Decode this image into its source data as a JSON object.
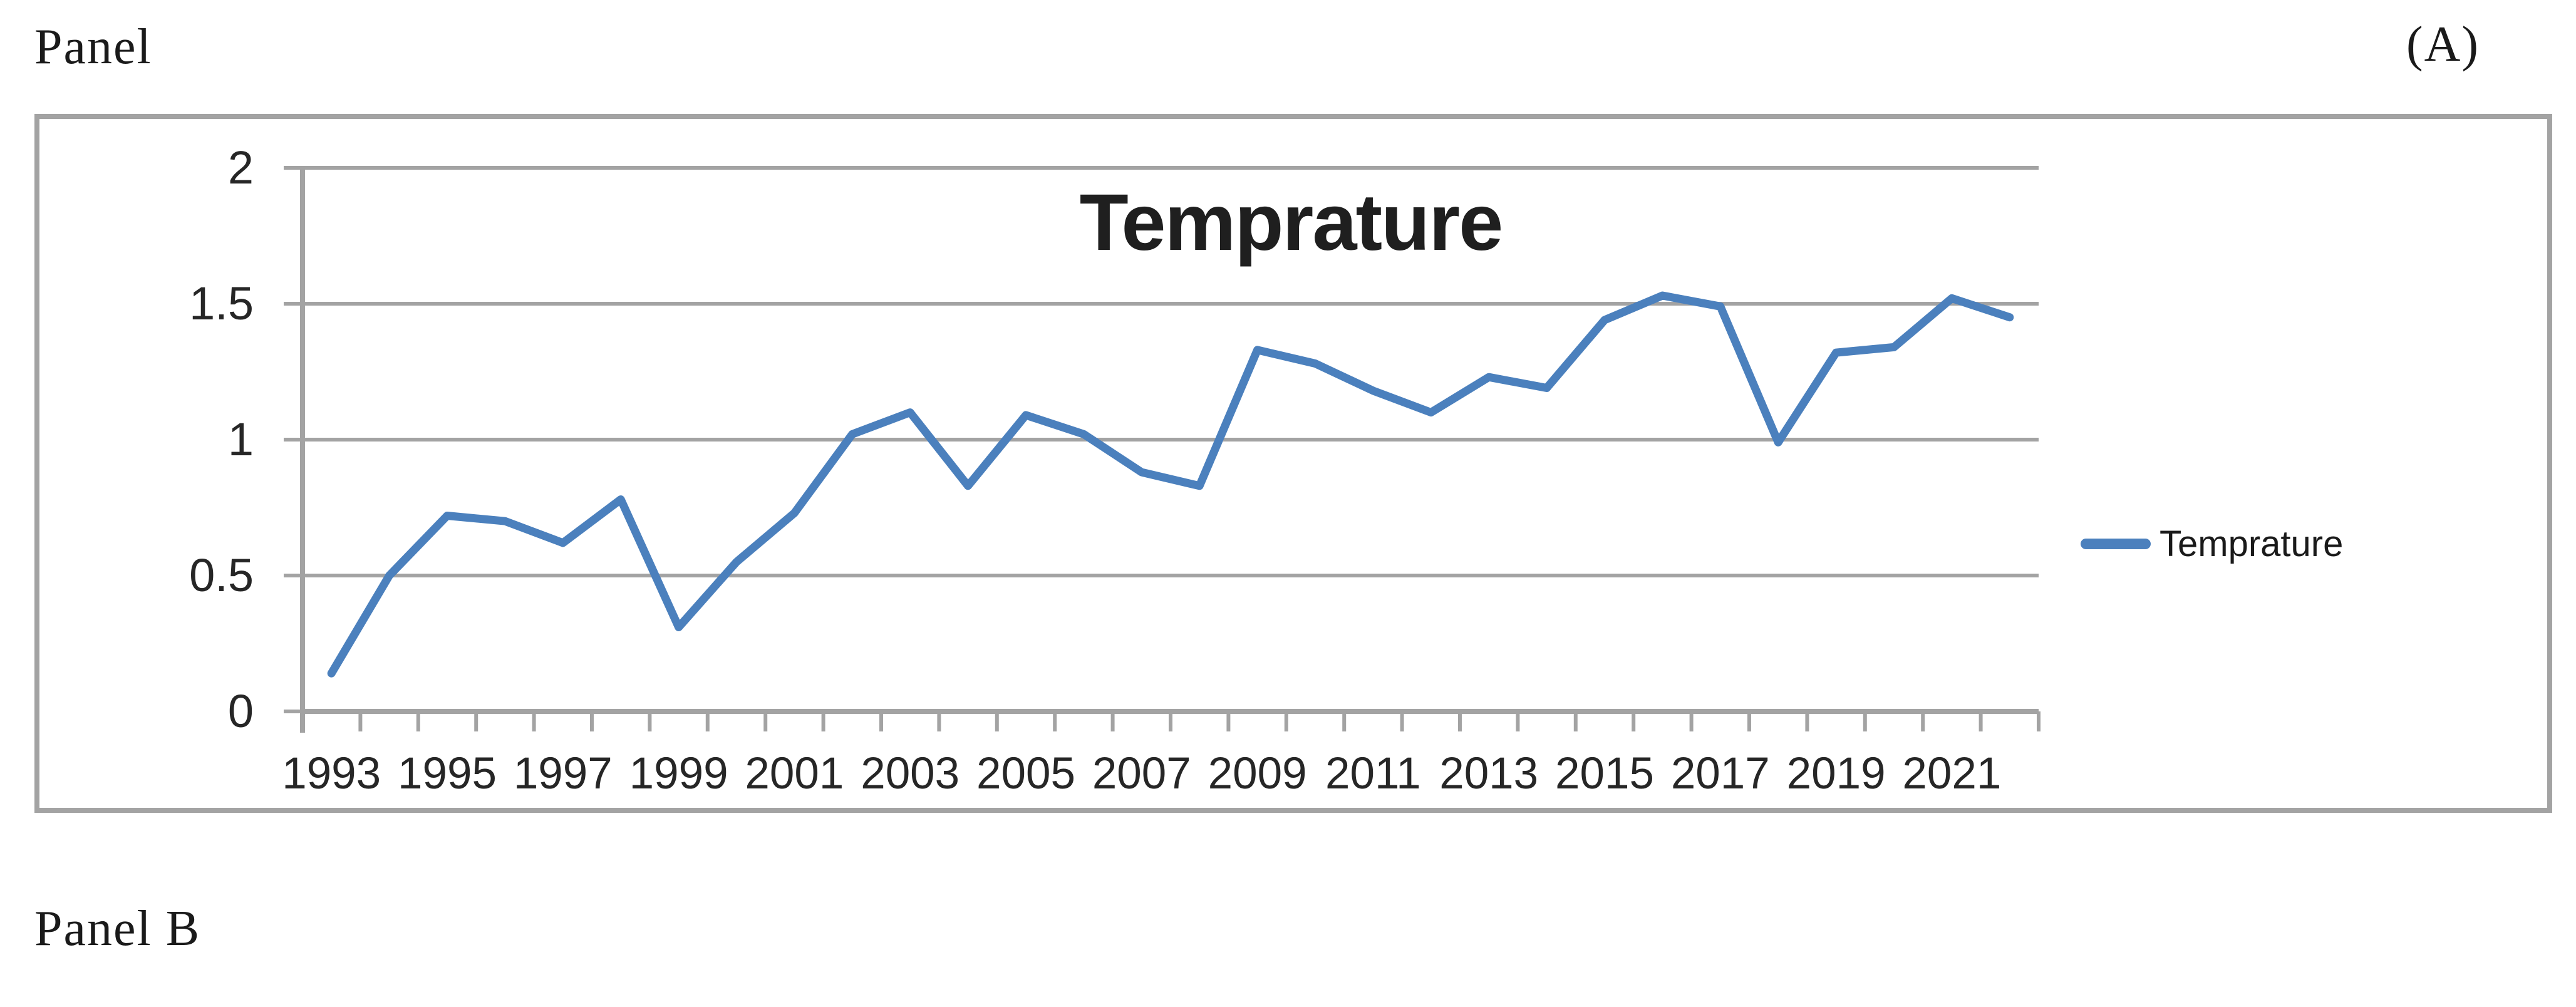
{
  "page": {
    "panel_label": "Panel",
    "corner_label": "(A)",
    "panel_b_label": "Panel B"
  },
  "chart": {
    "title": "Temprature",
    "legend_label": "Temprature",
    "colors": {
      "line": "#4b80bd",
      "grid": "#a3a3a3",
      "axis": "#a3a3a3",
      "border": "#a3a3a3",
      "title_text": "#1f1f1f",
      "axis_text": "#262626"
    }
  },
  "chart_data": {
    "type": "line",
    "title": "Temprature",
    "xlabel": "",
    "ylabel": "",
    "x": [
      1993,
      1994,
      1995,
      1996,
      1997,
      1998,
      1999,
      2000,
      2001,
      2002,
      2003,
      2004,
      2005,
      2006,
      2007,
      2008,
      2009,
      2010,
      2011,
      2012,
      2013,
      2014,
      2015,
      2016,
      2017,
      2018,
      2019,
      2020,
      2021,
      2022
    ],
    "series": [
      {
        "name": "Temprature",
        "values": [
          0.14,
          0.5,
          0.72,
          0.7,
          0.62,
          0.78,
          0.31,
          0.55,
          0.73,
          1.02,
          1.1,
          0.83,
          1.09,
          1.02,
          0.88,
          0.83,
          1.33,
          1.28,
          1.18,
          1.1,
          1.23,
          1.19,
          1.44,
          1.53,
          1.49,
          0.99,
          1.32,
          1.34,
          1.52,
          1.45
        ]
      }
    ],
    "x_tick_labels": [
      "1993",
      "1995",
      "1997",
      "1999",
      "2001",
      "2003",
      "2005",
      "2007",
      "2009",
      "2011",
      "2013",
      "2015",
      "2017",
      "2019",
      "2021"
    ],
    "y_ticks": [
      0,
      0.5,
      1,
      1.5,
      2
    ],
    "y_tick_labels": [
      "0",
      "0.5",
      "1",
      "1.5",
      "2"
    ],
    "ylim": [
      0,
      2
    ],
    "grid": "horizontal-major",
    "legend_position": "right"
  }
}
